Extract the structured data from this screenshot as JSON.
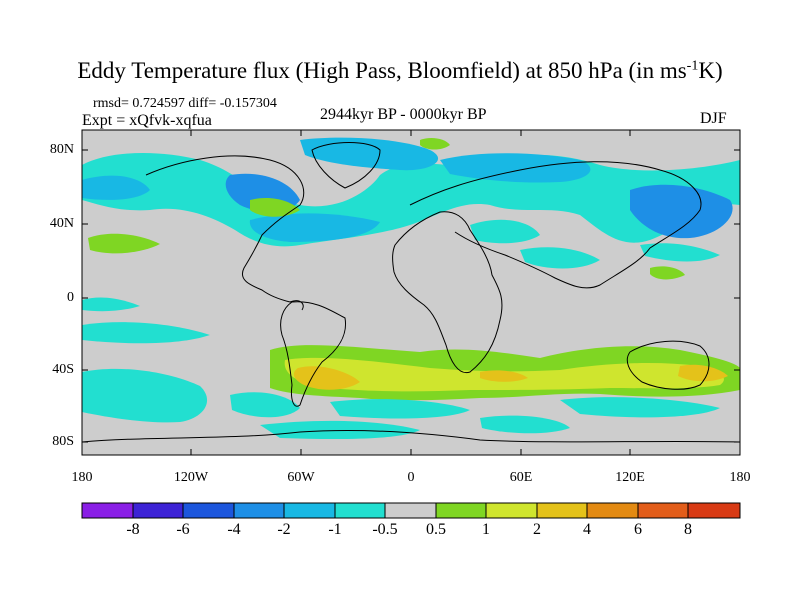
{
  "title_main": "Eddy Temperature flux (High Pass, Bloomfield) at 850 hPa (in ms",
  "title_sup": "-1",
  "title_end": "K)",
  "stats_text": "rmsd= 0.724597 diff= -0.157304",
  "expt_text": "Expt = xQfvk-xqfua",
  "period_text": "2944kyr BP - 0000kyr BP",
  "season_text": "DJF",
  "lat_labels": [
    "80N",
    "40N",
    "0",
    "40S",
    "80S"
  ],
  "lon_labels": [
    "180",
    "120W",
    "60W",
    "0",
    "60E",
    "120E",
    "180"
  ],
  "colorbar": {
    "labels": [
      "-8",
      "-6",
      "-4",
      "-2",
      "-1",
      "-0.5",
      "0.5",
      "1",
      "2",
      "4",
      "6",
      "8"
    ],
    "colors": [
      "#8a1fe6",
      "#3d23d6",
      "#1c56dc",
      "#1e8fe6",
      "#18b8e4",
      "#22dfd0",
      "#cdcdcd",
      "#7fd623",
      "#cfe52e",
      "#e4c21a",
      "#e38a12",
      "#e25d1a",
      "#d83a14"
    ]
  },
  "colors": {
    "background": "#cdcdcd",
    "lightcyan": "#22dfd0",
    "cyan": "#18b8e4",
    "blue": "#1e8fe6",
    "green": "#7fd623",
    "yellow": "#cfe52e",
    "orange": "#e4c21a"
  }
}
